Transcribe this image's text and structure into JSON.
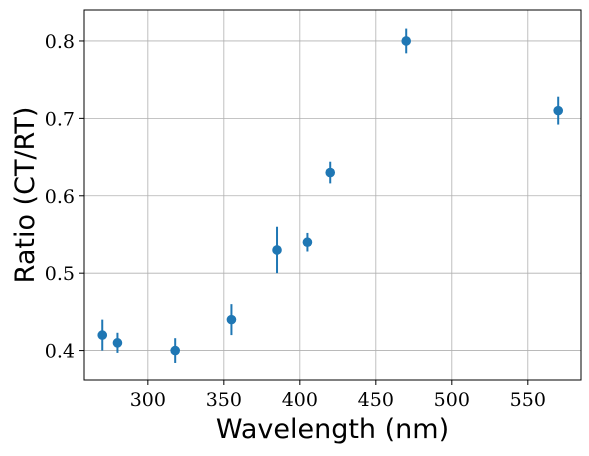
{
  "chart_data": {
    "type": "scatter",
    "title": "",
    "xlabel": "Wavelength (nm)",
    "ylabel": "Ratio (CT/RT)",
    "xlim": [
      258,
      585
    ],
    "ylim": [
      0.362,
      0.84
    ],
    "x_ticks": [
      300,
      350,
      400,
      450,
      500,
      550
    ],
    "y_ticks": [
      0.4,
      0.5,
      0.6,
      0.7,
      0.8
    ],
    "x_tick_labels": [
      "300",
      "350",
      "400",
      "450",
      "500",
      "550"
    ],
    "y_tick_labels": [
      "0.4",
      "0.5",
      "0.6",
      "0.7",
      "0.8"
    ],
    "grid": true,
    "legend": "none",
    "color": "#1f77b4",
    "series": [
      {
        "x": [
          270,
          280,
          318,
          355,
          385,
          405,
          420,
          470,
          570
        ],
        "y": [
          0.42,
          0.41,
          0.4,
          0.44,
          0.53,
          0.54,
          0.63,
          0.8,
          0.71
        ],
        "yerr": [
          0.02,
          0.013,
          0.016,
          0.02,
          0.03,
          0.012,
          0.014,
          0.016,
          0.018
        ]
      }
    ]
  }
}
